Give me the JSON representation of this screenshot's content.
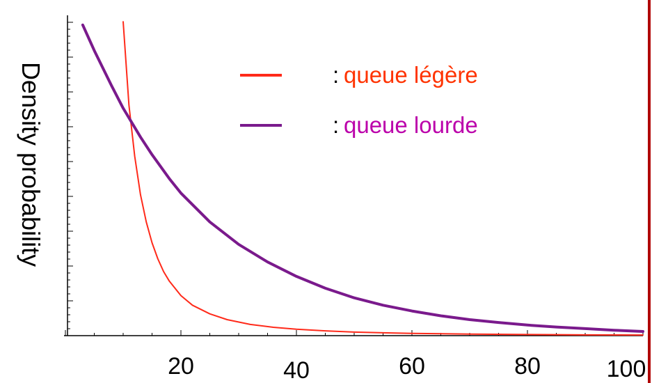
{
  "chart_data": {
    "type": "line",
    "title": "",
    "xlabel": "",
    "ylabel": "Density probability",
    "xlim": [
      0,
      100
    ],
    "ylim": [
      0,
      1
    ],
    "x_ticks": [
      20,
      40,
      60,
      80,
      100
    ],
    "grid": false,
    "legend_placement": "top-center",
    "series": [
      {
        "name": "queue légère",
        "prefix": ":",
        "color": "#ff2a1a",
        "label_color": "#ff3300",
        "x": [
          10,
          11,
          12,
          13,
          14,
          15,
          16,
          17,
          18,
          20,
          22,
          25,
          28,
          32,
          36,
          40,
          45,
          50,
          55,
          60,
          70,
          80,
          90,
          100
        ],
        "y": [
          0.98,
          0.72,
          0.56,
          0.44,
          0.355,
          0.29,
          0.24,
          0.2,
          0.17,
          0.125,
          0.095,
          0.068,
          0.05,
          0.035,
          0.026,
          0.02,
          0.015,
          0.011,
          0.009,
          0.007,
          0.005,
          0.0035,
          0.0025,
          0.002
        ]
      },
      {
        "name": "queue lourde",
        "prefix": ":",
        "color": "#7a1a8c",
        "label_color": "#bb00aa",
        "x": [
          3,
          5,
          8,
          10,
          13,
          15,
          18,
          20,
          25,
          30,
          35,
          40,
          45,
          50,
          55,
          60,
          65,
          70,
          75,
          80,
          85,
          90,
          95,
          100
        ],
        "y": [
          0.97,
          0.89,
          0.78,
          0.71,
          0.62,
          0.565,
          0.49,
          0.445,
          0.355,
          0.285,
          0.23,
          0.185,
          0.148,
          0.118,
          0.095,
          0.077,
          0.062,
          0.05,
          0.041,
          0.033,
          0.027,
          0.022,
          0.017,
          0.013
        ]
      }
    ],
    "colors": {
      "axis": "#000000",
      "right_border": "#b00000"
    }
  }
}
